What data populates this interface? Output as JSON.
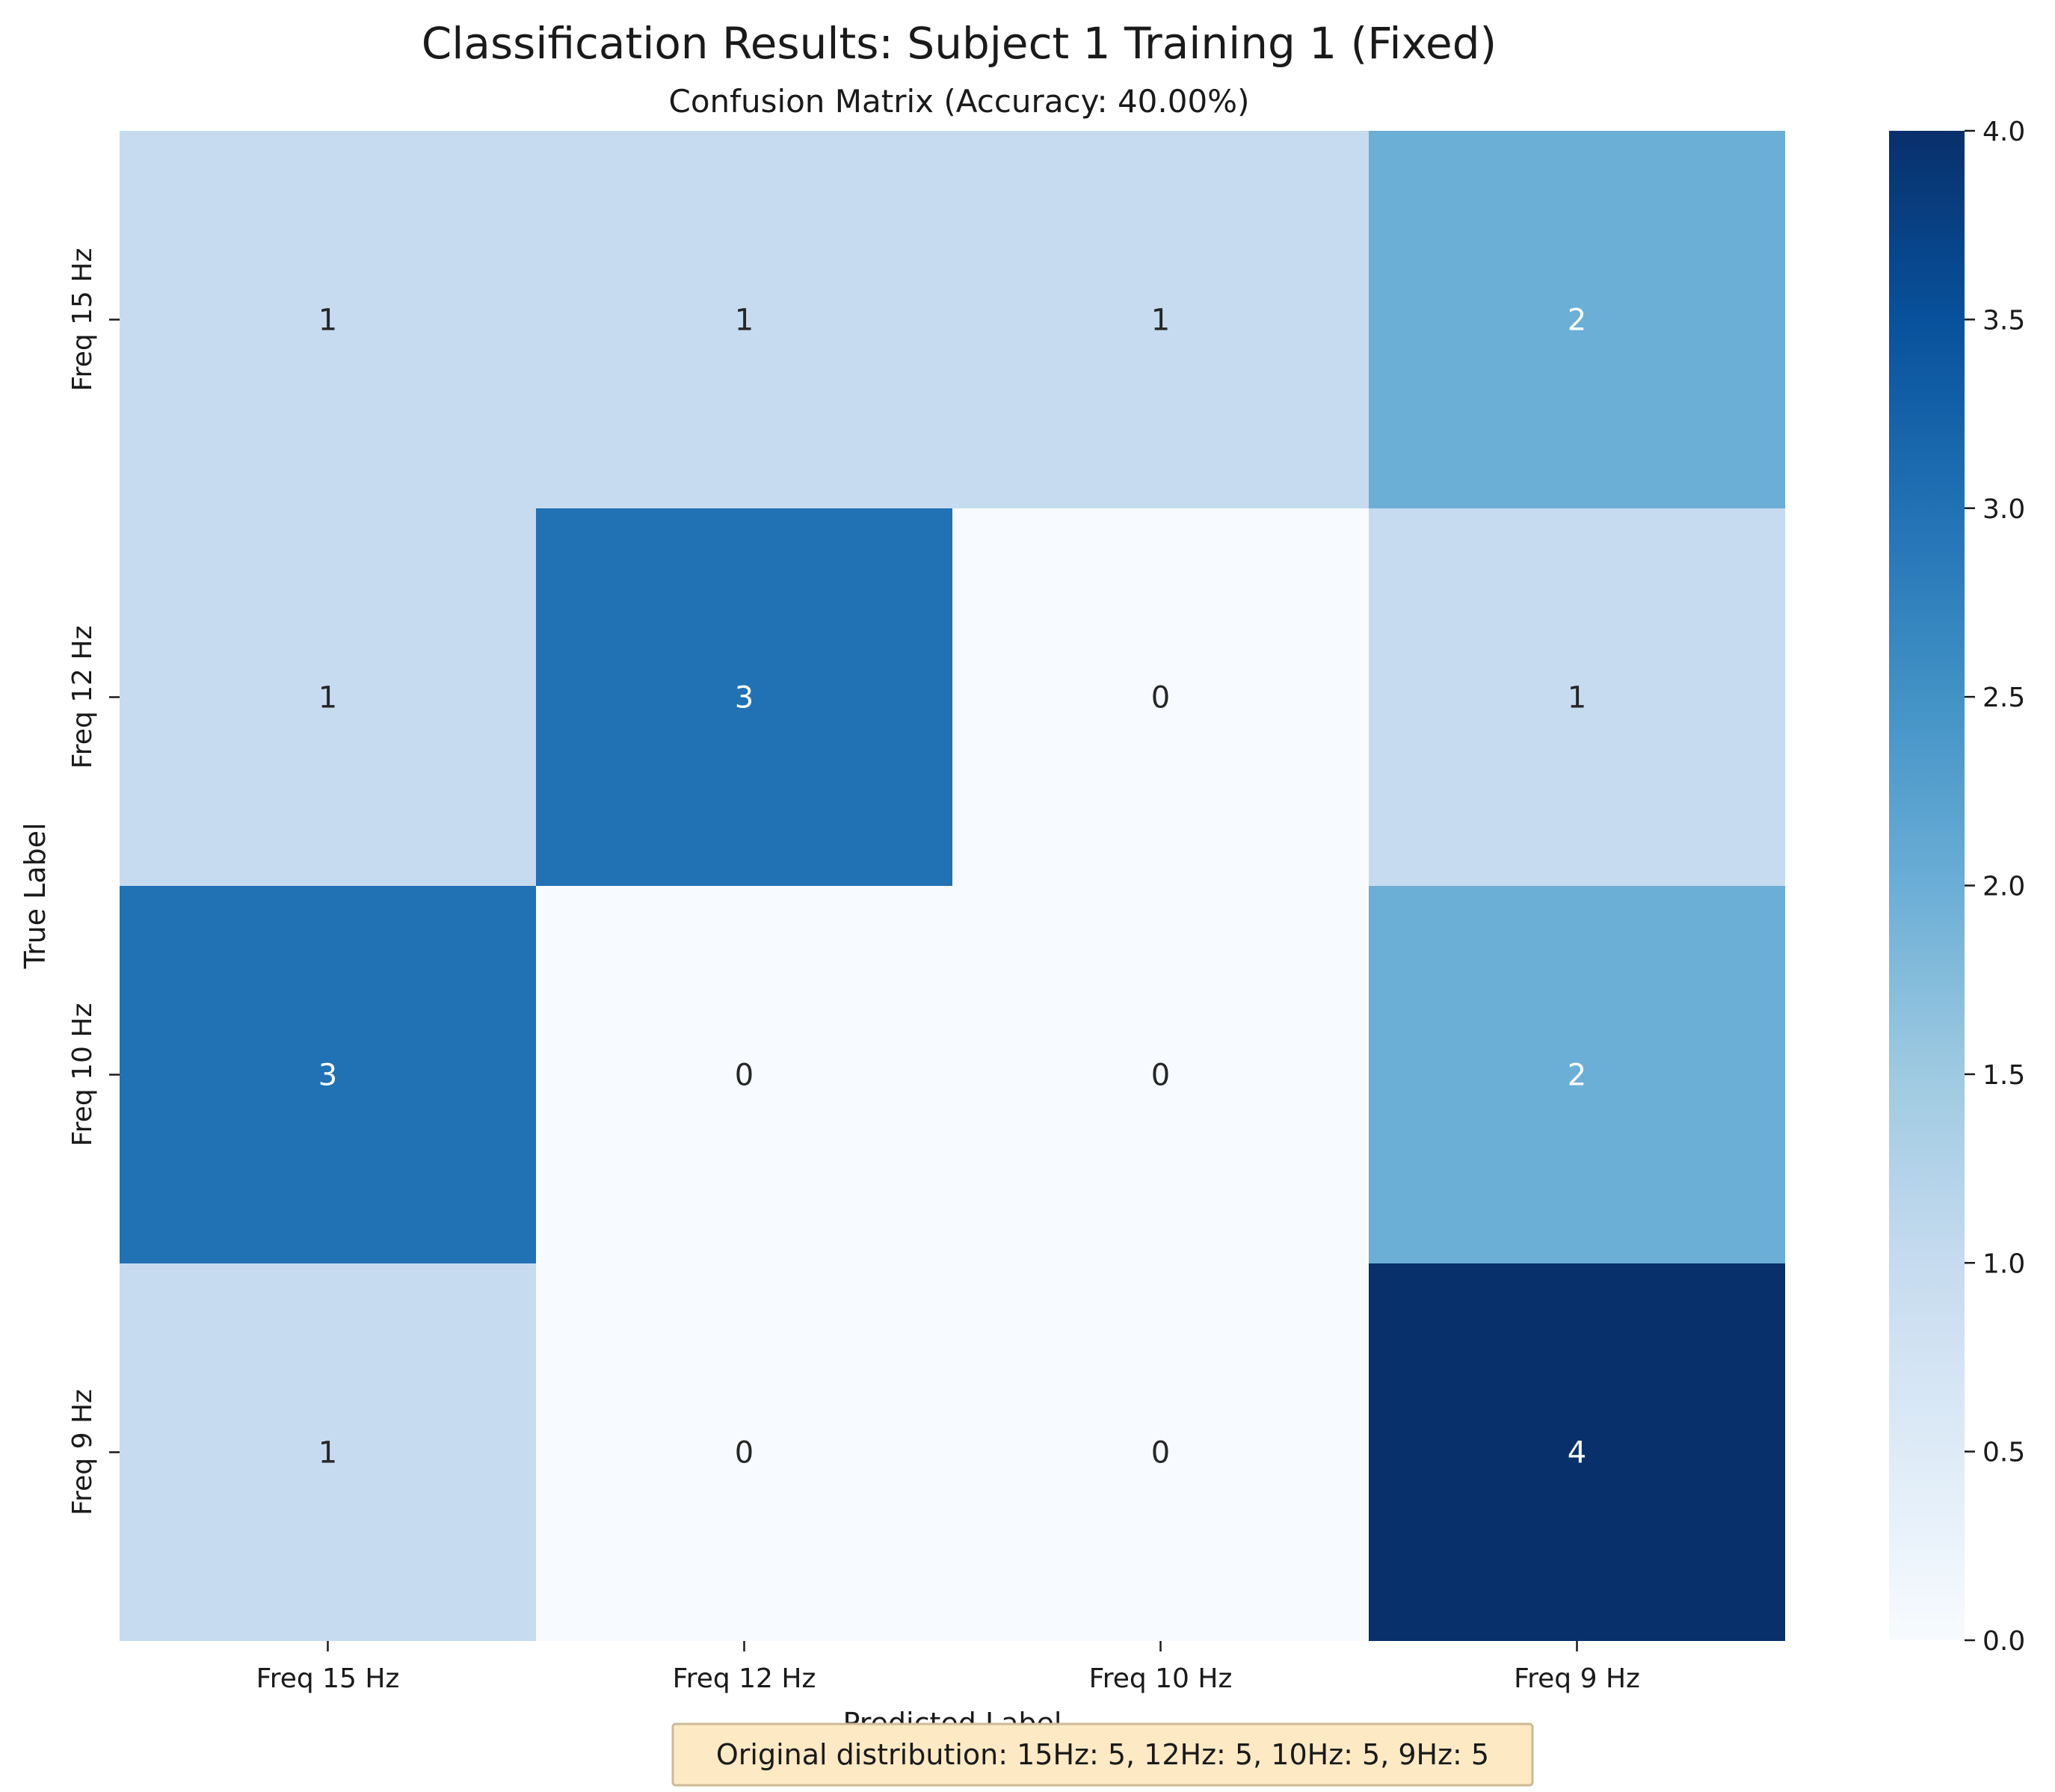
{
  "chart_data": {
    "type": "heatmap",
    "title": "Classification Results: Subject 1 Training 1 (Fixed)",
    "subtitle": "Confusion Matrix (Accuracy: 40.00%)",
    "xlabel": "Predicted Label",
    "ylabel": "True Label",
    "x_categories": [
      "Freq 15 Hz",
      "Freq 12 Hz",
      "Freq 10 Hz",
      "Freq 9 Hz"
    ],
    "y_categories": [
      "Freq 15 Hz",
      "Freq 12 Hz",
      "Freq 10 Hz",
      "Freq 9 Hz"
    ],
    "values": [
      [
        1,
        1,
        1,
        2
      ],
      [
        1,
        3,
        0,
        1
      ],
      [
        3,
        0,
        0,
        2
      ],
      [
        1,
        0,
        0,
        4
      ]
    ],
    "colorscale": "Blues",
    "color_min": 0,
    "color_max": 4,
    "colorbar_ticks": [
      "0.0",
      "0.5",
      "1.0",
      "1.5",
      "2.0",
      "2.5",
      "3.0",
      "3.5",
      "4.0"
    ],
    "annotation": "Original distribution: 15Hz: 5, 12Hz: 5, 10Hz: 5, 9Hz: 5"
  }
}
